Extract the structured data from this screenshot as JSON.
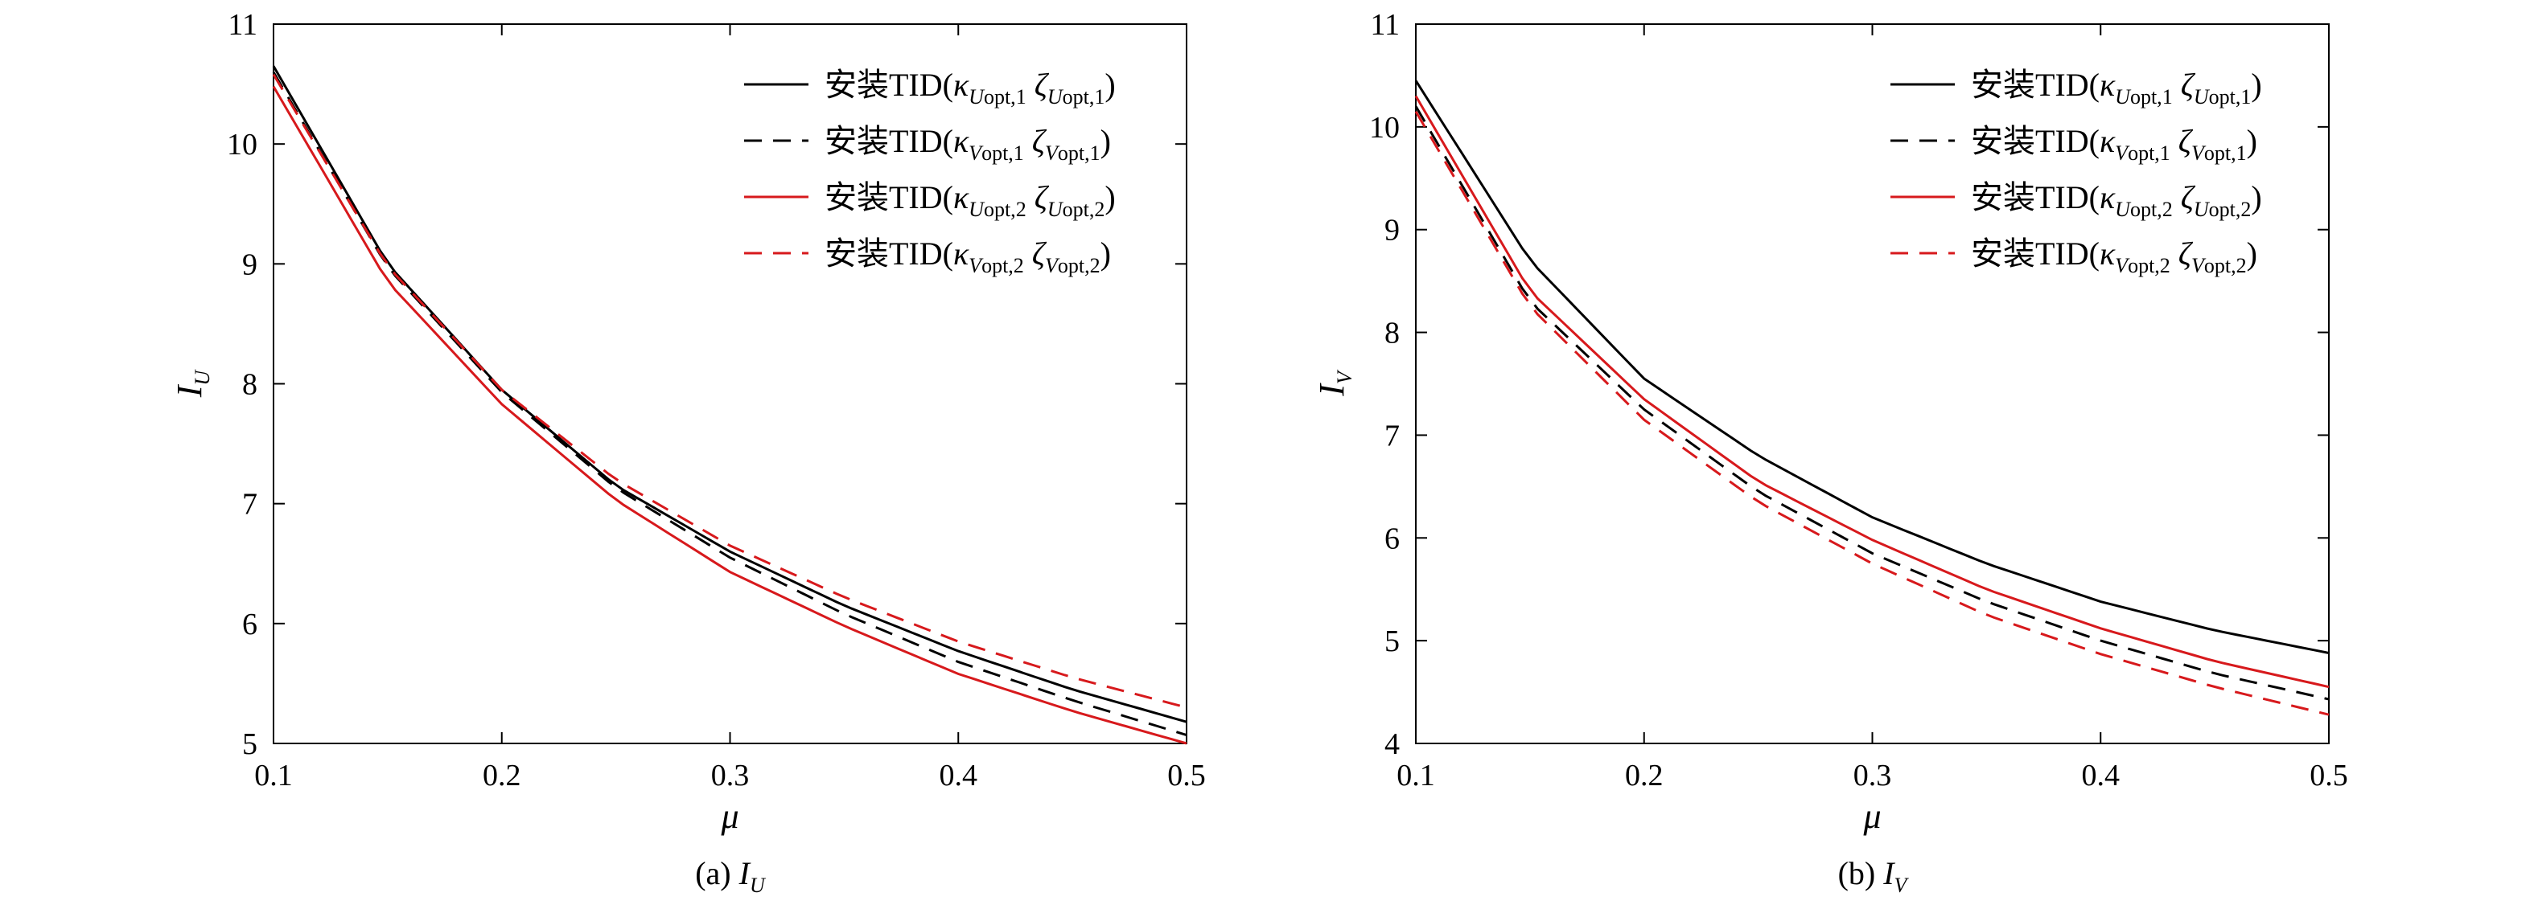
{
  "chart_data": [
    {
      "type": "line",
      "caption": {
        "prefix": "(a) ",
        "symbol": "I",
        "subscript": "U"
      },
      "ylabel": {
        "symbol": "I",
        "subscript": "U"
      },
      "xlabel": "μ",
      "xlim": [
        0.1,
        0.5
      ],
      "ylim": [
        5,
        11
      ],
      "xticks": [
        "0.1",
        "0.2",
        "0.3",
        "0.4",
        "0.5"
      ],
      "yticks": [
        "5",
        "6",
        "7",
        "8",
        "9",
        "10",
        "11"
      ],
      "grid": false,
      "legend_position": "top-right",
      "x": [
        0.1,
        0.15,
        0.2,
        0.25,
        0.3,
        0.35,
        0.4,
        0.45,
        0.5
      ],
      "series": [
        {
          "name": "安装TID(κUopt,1 ζUopt,1)",
          "color": "#000000",
          "dash": "solid",
          "label": {
            "prefix": "安装TID(",
            "k_sub": "U",
            "z_sub": "U",
            "idx": "1"
          },
          "values": [
            10.65,
            9.0,
            7.95,
            7.15,
            6.6,
            6.15,
            5.77,
            5.45,
            5.18
          ]
        },
        {
          "name": "安装TID(κVopt,1 ζVopt,1)",
          "color": "#000000",
          "dash": "dashed",
          "label": {
            "prefix": "安装TID(",
            "k_sub": "V",
            "z_sub": "V",
            "idx": "1"
          },
          "values": [
            10.6,
            8.97,
            7.93,
            7.13,
            6.55,
            6.08,
            5.68,
            5.36,
            5.07
          ]
        },
        {
          "name": "安装TID(κUopt,2 ζUopt,2)",
          "color": "#d7191c",
          "dash": "solid",
          "label": {
            "prefix": "安装TID(",
            "k_sub": "U",
            "z_sub": "U",
            "idx": "2"
          },
          "values": [
            10.48,
            8.85,
            7.83,
            7.03,
            6.43,
            5.98,
            5.58,
            5.27,
            5.0
          ]
        },
        {
          "name": "安装TID(κVopt,2 ζVopt,2)",
          "color": "#d7191c",
          "dash": "dashed",
          "label": {
            "prefix": "安装TID(",
            "k_sub": "V",
            "z_sub": "V",
            "idx": "2"
          },
          "values": [
            10.58,
            8.98,
            7.95,
            7.2,
            6.65,
            6.22,
            5.85,
            5.55,
            5.3
          ]
        }
      ]
    },
    {
      "type": "line",
      "caption": {
        "prefix": "(b) ",
        "symbol": "I",
        "subscript": "V"
      },
      "ylabel": {
        "symbol": "I",
        "subscript": "V"
      },
      "xlabel": "μ",
      "xlim": [
        0.1,
        0.5
      ],
      "ylim": [
        4,
        11
      ],
      "xticks": [
        "0.1",
        "0.2",
        "0.3",
        "0.4",
        "0.5"
      ],
      "yticks": [
        "4",
        "5",
        "6",
        "7",
        "8",
        "9",
        "10",
        "11"
      ],
      "grid": false,
      "legend_position": "top-right",
      "x": [
        0.1,
        0.15,
        0.2,
        0.25,
        0.3,
        0.35,
        0.4,
        0.45,
        0.5
      ],
      "series": [
        {
          "name": "安装TID(κUopt,1 ζUopt,1)",
          "color": "#000000",
          "dash": "solid",
          "label": {
            "prefix": "安装TID(",
            "k_sub": "U",
            "z_sub": "U",
            "idx": "1"
          },
          "values": [
            10.45,
            8.7,
            7.55,
            6.8,
            6.2,
            5.75,
            5.38,
            5.1,
            4.88
          ]
        },
        {
          "name": "安装TID(κVopt,1 ζVopt,1)",
          "color": "#000000",
          "dash": "dashed",
          "label": {
            "prefix": "安装TID(",
            "k_sub": "V",
            "z_sub": "V",
            "idx": "1"
          },
          "values": [
            10.2,
            8.3,
            7.25,
            6.45,
            5.85,
            5.38,
            5.0,
            4.68,
            4.43
          ]
        },
        {
          "name": "安装TID(κUopt,2 ζUopt,2)",
          "color": "#d7191c",
          "dash": "solid",
          "label": {
            "prefix": "安装TID(",
            "k_sub": "U",
            "z_sub": "U",
            "idx": "2"
          },
          "values": [
            10.3,
            8.4,
            7.35,
            6.55,
            5.98,
            5.5,
            5.12,
            4.8,
            4.55
          ]
        },
        {
          "name": "安装TID(κVopt,2 ζVopt,2)",
          "color": "#d7191c",
          "dash": "dashed",
          "label": {
            "prefix": "安装TID(",
            "k_sub": "V",
            "z_sub": "V",
            "idx": "2"
          },
          "values": [
            10.15,
            8.25,
            7.15,
            6.35,
            5.75,
            5.25,
            4.87,
            4.55,
            4.28
          ]
        }
      ]
    }
  ]
}
